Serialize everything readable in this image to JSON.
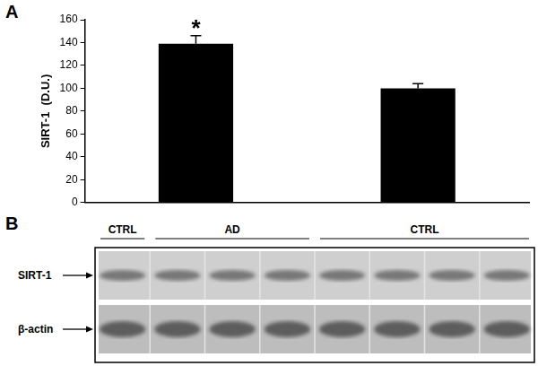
{
  "chart_data": {
    "type": "bar",
    "panel": "A",
    "categories": [
      null,
      null
    ],
    "values": [
      139,
      100
    ],
    "errors": [
      7,
      4
    ],
    "color": "#000000",
    "y_label": "SIRT-1  (D.U.)",
    "ylim": [
      0,
      160
    ],
    "yticks": [
      0,
      20,
      40,
      60,
      80,
      100,
      120,
      140,
      160
    ],
    "grid": false,
    "tick_labels": "y",
    "annotations": [
      {
        "text": "*",
        "category_index": 0
      }
    ]
  },
  "blot": {
    "panel": "B",
    "groups": [
      {
        "label": "CTRL",
        "lanes": 1
      },
      {
        "label": "AD",
        "lanes": 3
      },
      {
        "label": "CTRL",
        "lanes": 4
      }
    ],
    "rows": [
      "SIRT-1",
      "β-actin"
    ]
  }
}
